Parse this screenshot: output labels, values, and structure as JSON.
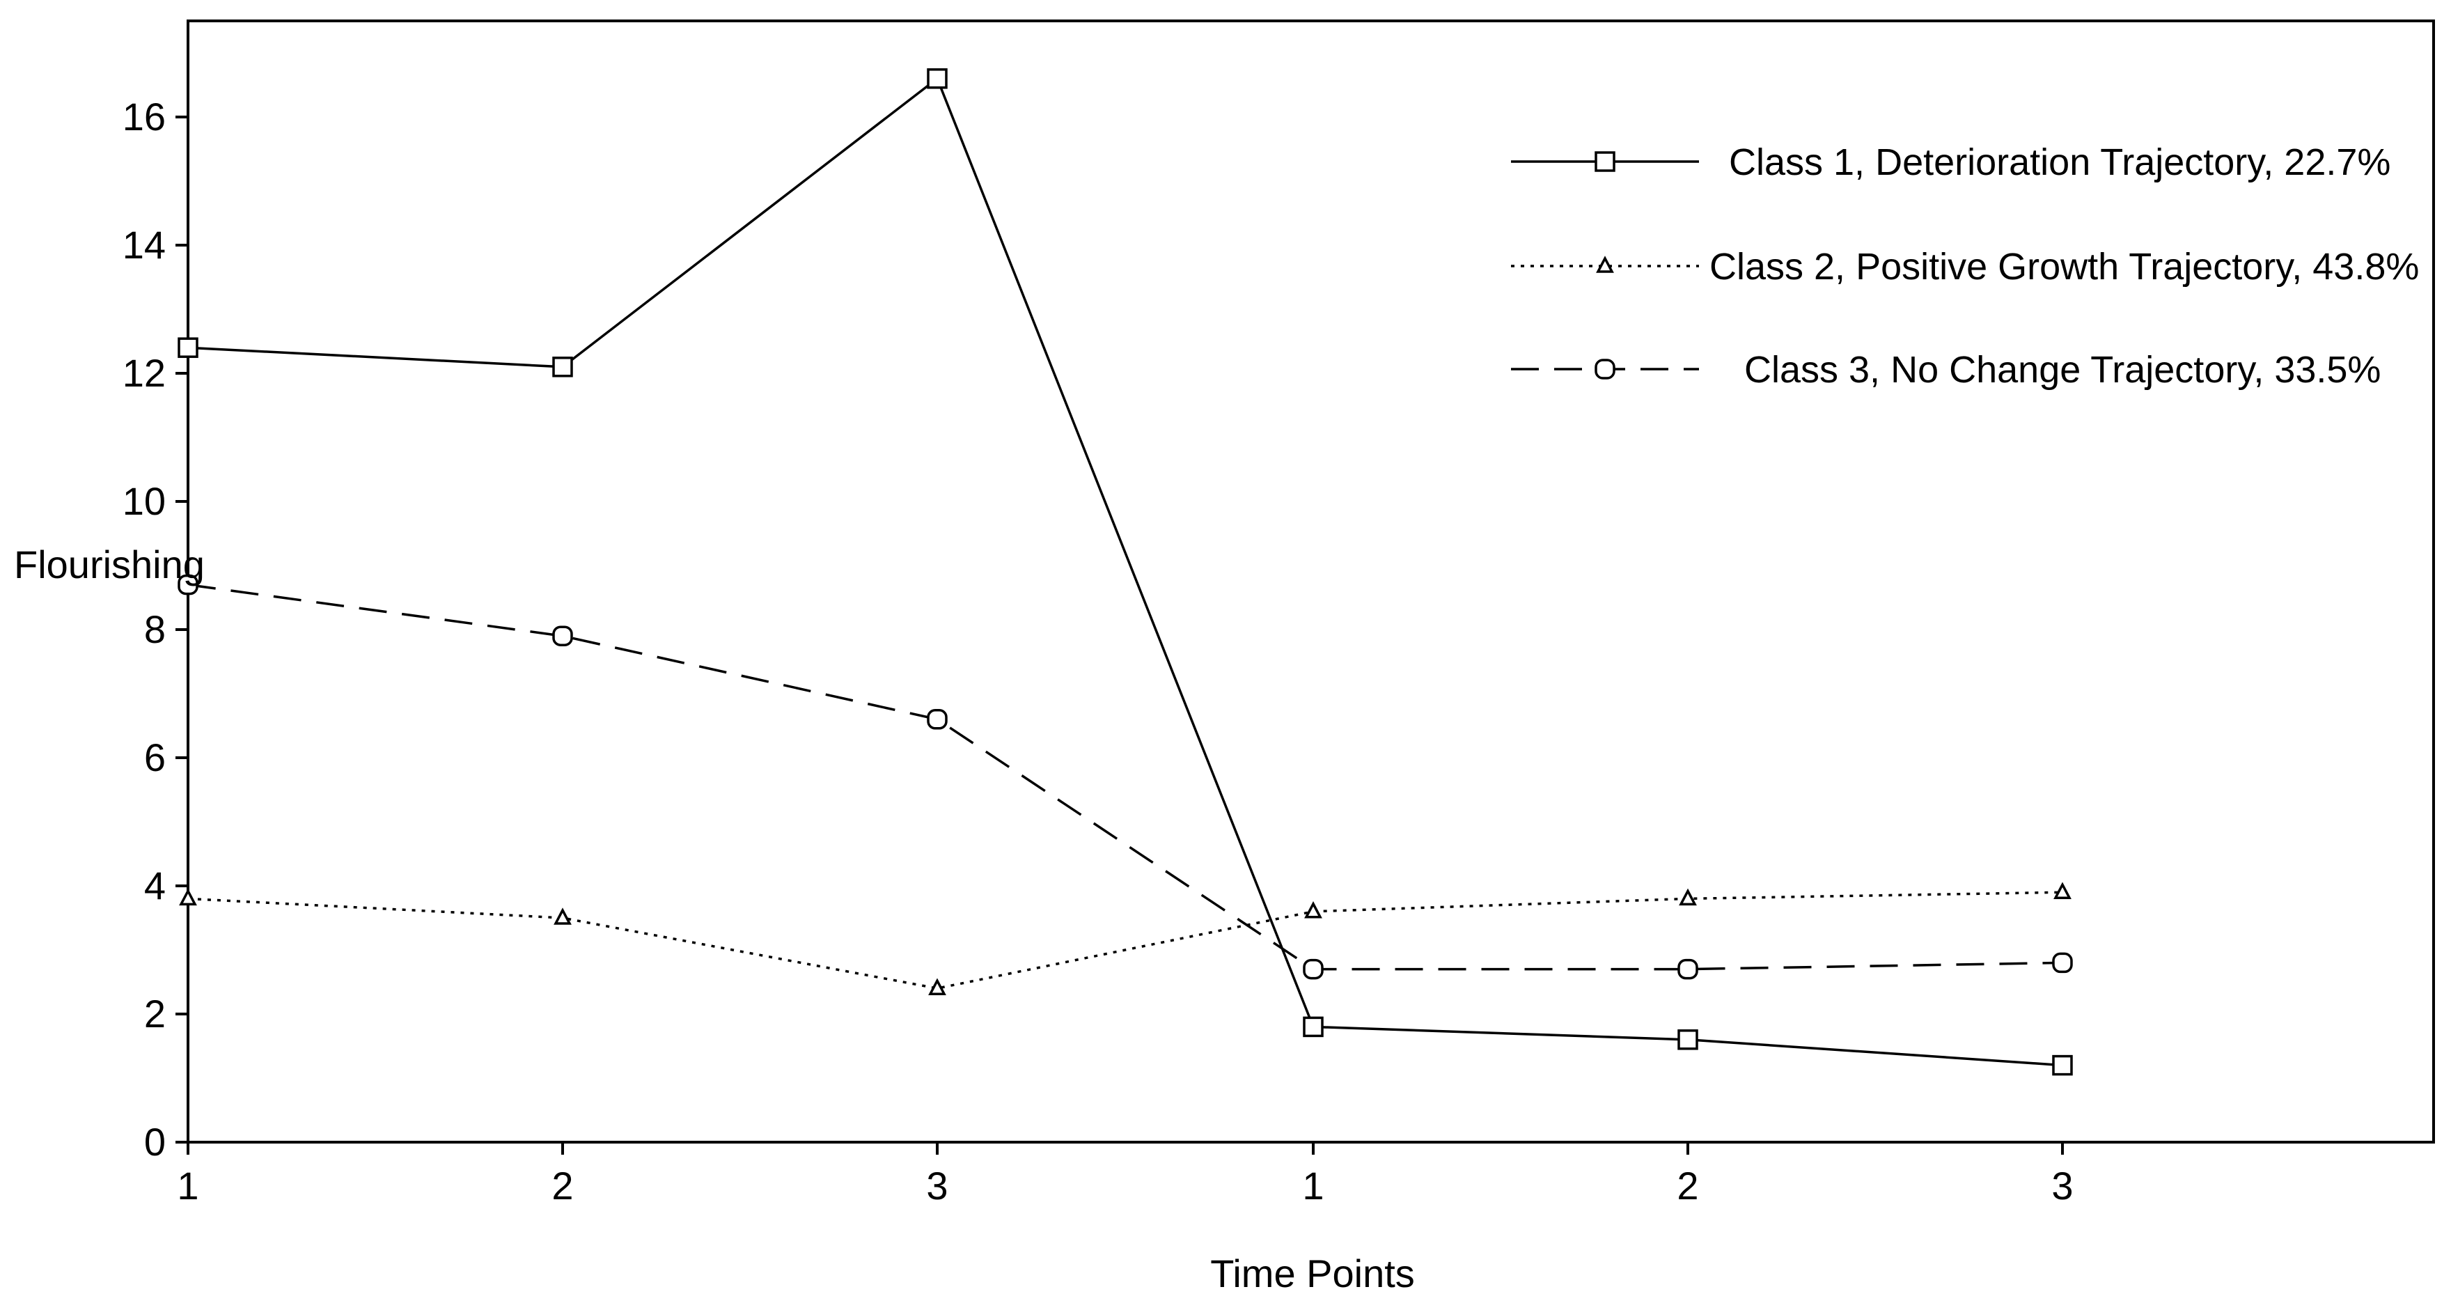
{
  "chart_data": {
    "type": "line",
    "title": "",
    "xlabel": "Time Points",
    "ylabel": "Flourishing",
    "x_tick_labels": [
      "1",
      "2",
      "3",
      "1",
      "2",
      "3"
    ],
    "y_ticks": [
      0,
      2,
      4,
      6,
      8,
      10,
      12,
      14,
      16
    ],
    "ylim": [
      0,
      17.5
    ],
    "grid": false,
    "legend_position": "top-right",
    "series": [
      {
        "name": "Class 1, Deterioration Trajectory, 22.7%",
        "marker": "square",
        "line_style": "solid",
        "values": [
          12.4,
          12.1,
          16.6,
          1.8,
          1.6,
          1.2
        ]
      },
      {
        "name": "Class 2, Positive Growth Trajectory, 43.8%",
        "marker": "triangle",
        "line_style": "dotted",
        "values": [
          3.8,
          3.5,
          2.4,
          3.6,
          3.8,
          3.9
        ]
      },
      {
        "name": "Class 3, No Change Trajectory, 33.5%",
        "marker": "circle",
        "line_style": "dashed",
        "values": [
          8.7,
          7.9,
          6.6,
          2.7,
          2.7,
          2.8
        ]
      }
    ]
  }
}
